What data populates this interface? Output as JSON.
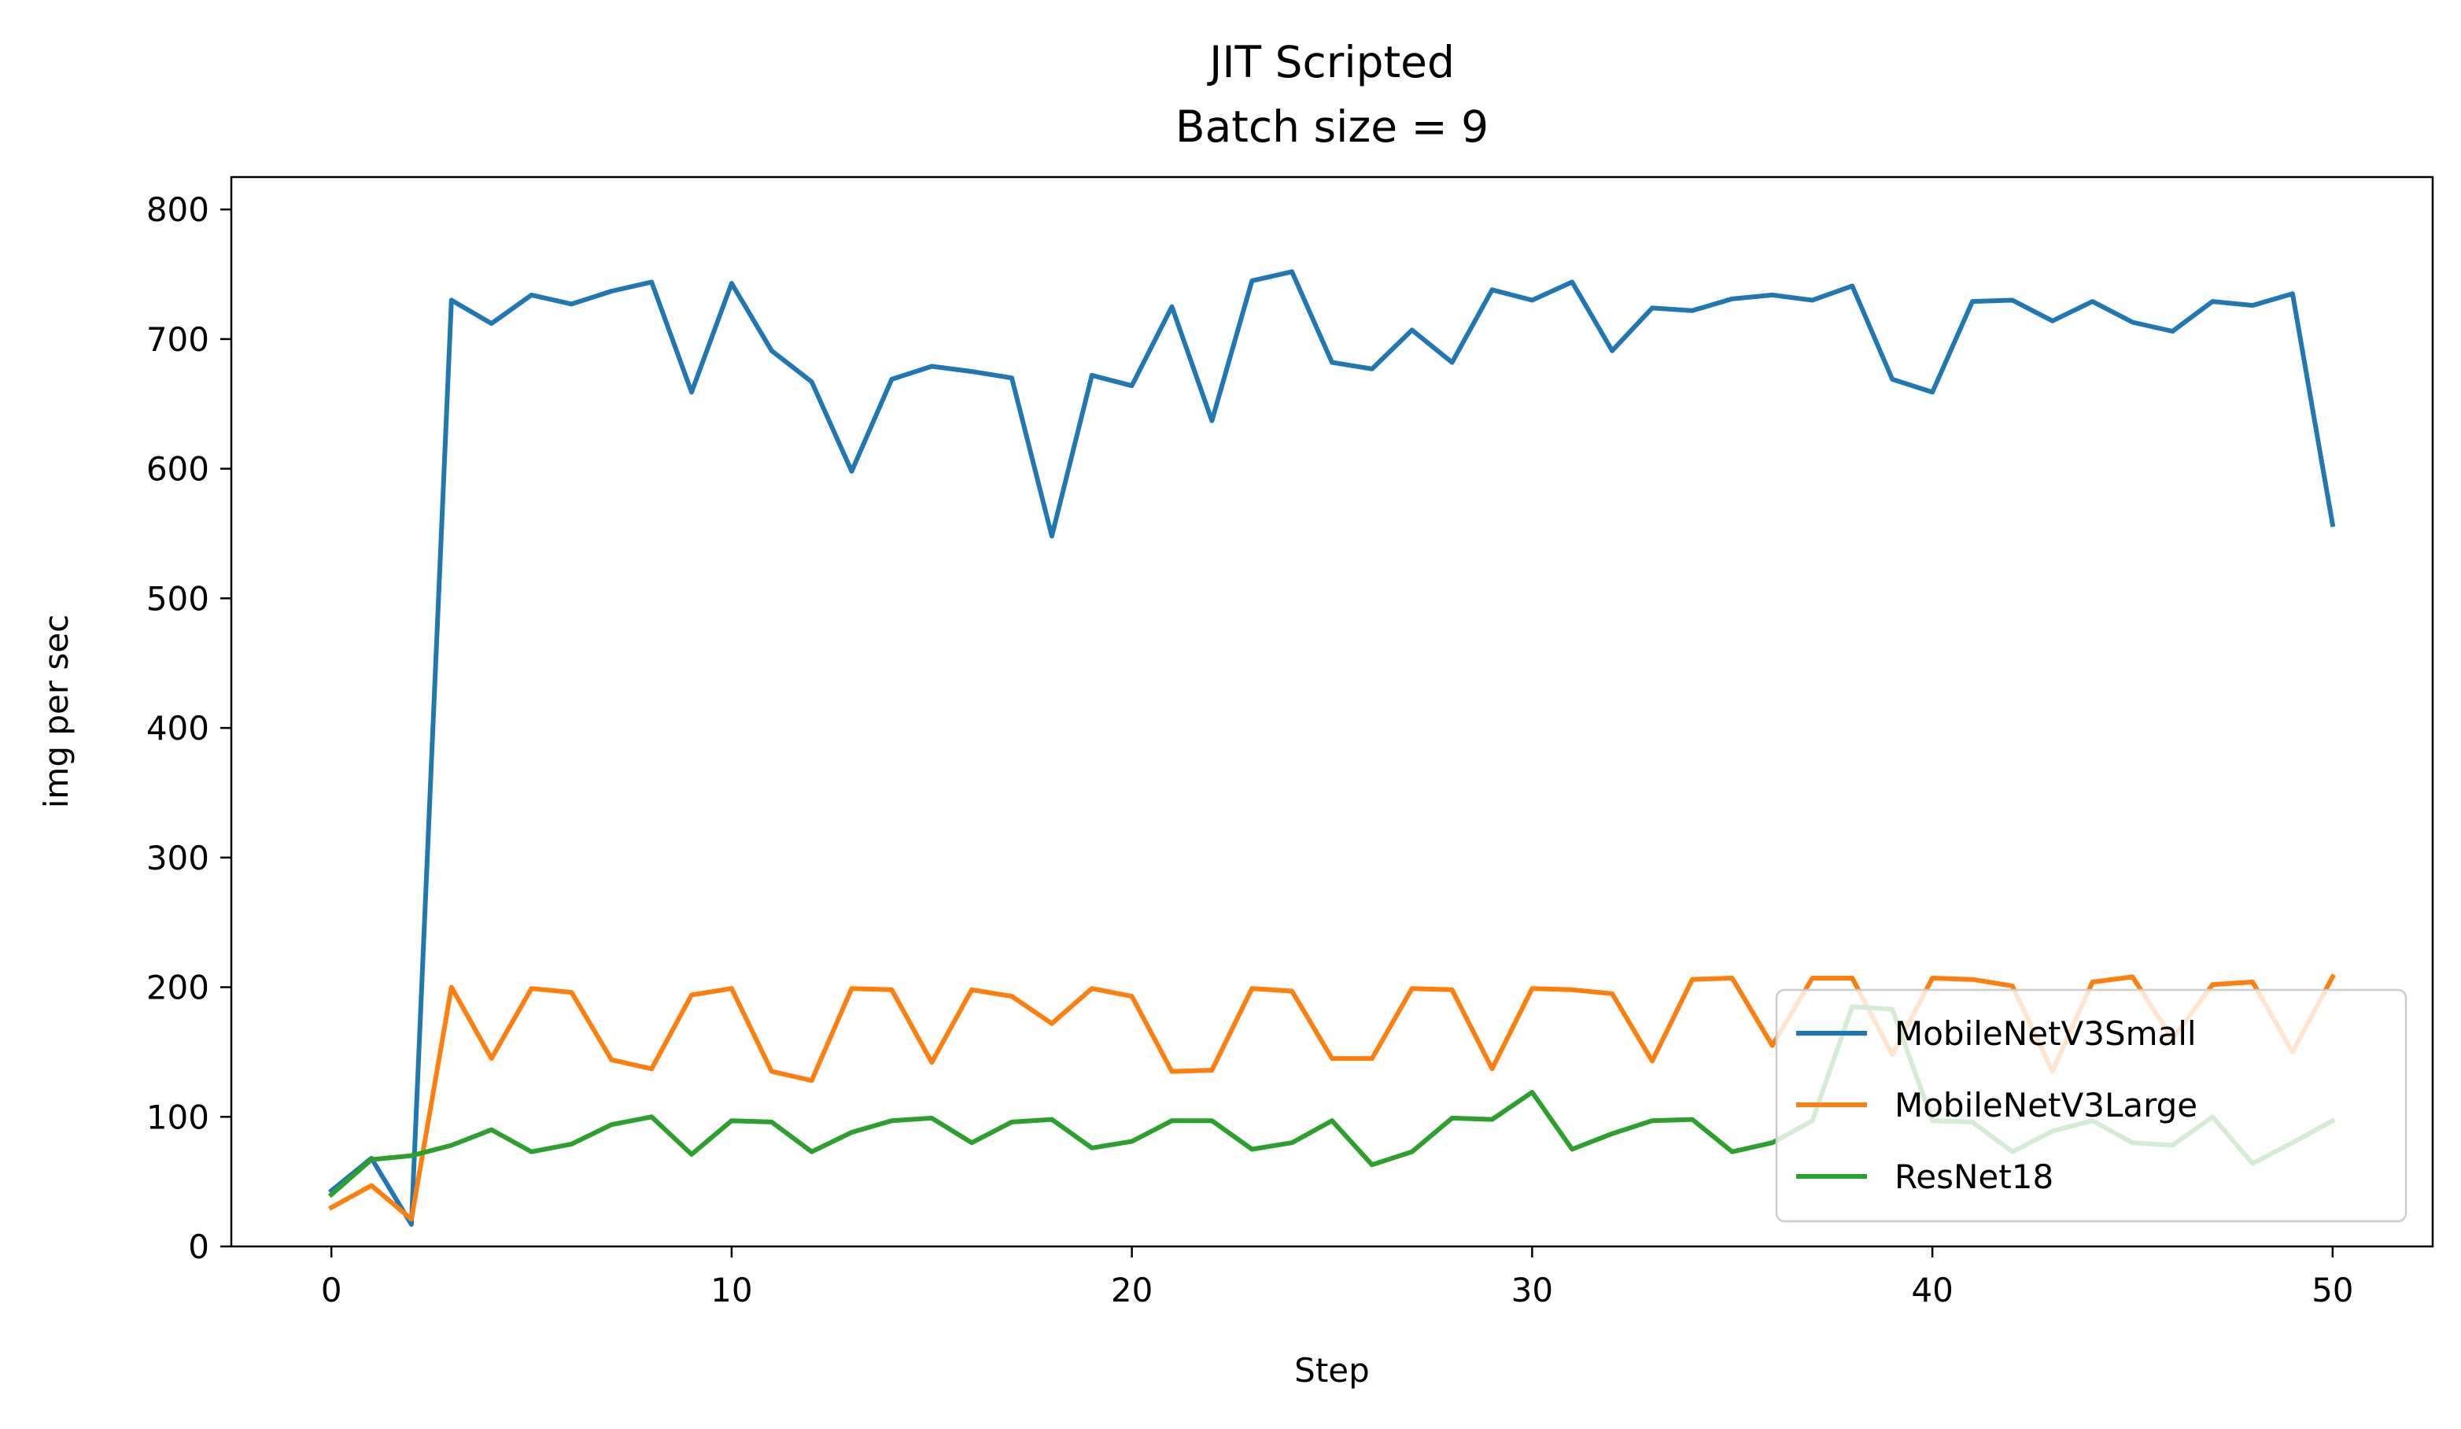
{
  "chart_data": {
    "type": "line",
    "title": "JIT Scripted",
    "subtitle": "Batch size = 9",
    "xlabel": "Step",
    "ylabel": "img per sec",
    "xlim": [
      -2.5,
      52.5
    ],
    "ylim": [
      0,
      825
    ],
    "xticks": [
      0,
      10,
      20,
      30,
      40,
      50
    ],
    "yticks": [
      0,
      100,
      200,
      300,
      400,
      500,
      600,
      700,
      800
    ],
    "grid": false,
    "legend_position": "lower-right",
    "x": [
      0,
      1,
      2,
      3,
      4,
      5,
      6,
      7,
      8,
      9,
      10,
      11,
      12,
      13,
      14,
      15,
      16,
      17,
      18,
      19,
      20,
      21,
      22,
      23,
      24,
      25,
      26,
      27,
      28,
      29,
      30,
      31,
      32,
      33,
      34,
      35,
      36,
      37,
      38,
      39,
      40,
      41,
      42,
      43,
      44,
      45,
      46,
      47,
      48,
      49,
      50
    ],
    "series": [
      {
        "name": "MobileNetV3Small",
        "color": "#1f77b4",
        "values": [
          43,
          68,
          17,
          730,
          712,
          734,
          727,
          737,
          744,
          659,
          743,
          691,
          667,
          598,
          669,
          679,
          675,
          670,
          548,
          672,
          664,
          725,
          637,
          745,
          752,
          682,
          677,
          707,
          682,
          738,
          730,
          744,
          691,
          724,
          722,
          731,
          734,
          730,
          741,
          669,
          659,
          729,
          730,
          714,
          729,
          713,
          706,
          729,
          726,
          735,
          557
        ]
      },
      {
        "name": "MobileNetV3Large",
        "color": "#ff7f0e",
        "values": [
          30,
          47,
          21,
          200,
          145,
          199,
          196,
          144,
          137,
          194,
          199,
          135,
          128,
          199,
          198,
          142,
          198,
          193,
          172,
          199,
          193,
          135,
          136,
          199,
          197,
          145,
          145,
          199,
          198,
          137,
          199,
          198,
          195,
          143,
          206,
          207,
          155,
          207,
          207,
          148,
          207,
          206,
          201,
          135,
          204,
          208,
          160,
          202,
          204,
          150,
          208
        ]
      },
      {
        "name": "ResNet18",
        "color": "#2ca02c",
        "values": [
          40,
          67,
          70,
          78,
          90,
          73,
          79,
          94,
          100,
          71,
          97,
          96,
          73,
          88,
          97,
          99,
          80,
          96,
          98,
          76,
          81,
          97,
          97,
          75,
          80,
          97,
          63,
          73,
          99,
          98,
          119,
          75,
          87,
          97,
          98,
          73,
          80,
          97,
          185,
          183,
          97,
          96,
          73,
          89,
          97,
          80,
          78,
          100,
          64,
          80,
          97
        ]
      }
    ]
  }
}
